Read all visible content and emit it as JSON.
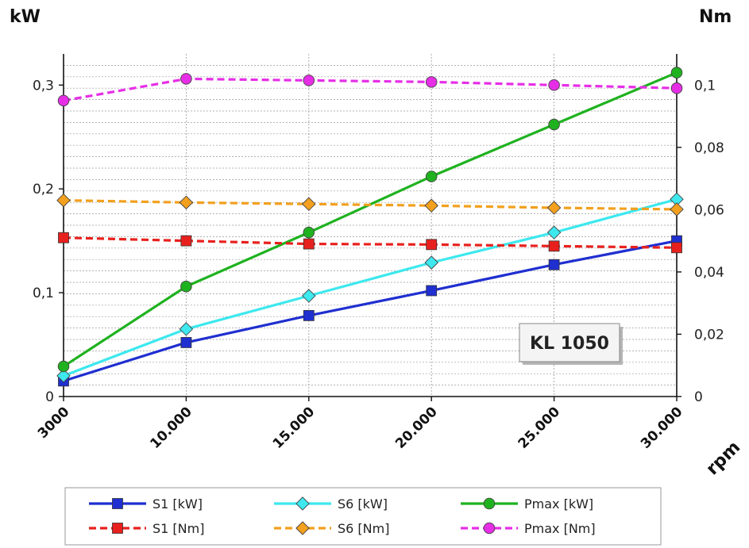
{
  "chart_data": {
    "type": "line",
    "badge": "KL 1050",
    "left_axis": {
      "unit": "kW",
      "ylim": [
        0,
        0.33
      ],
      "ticks": [
        0,
        0.1,
        0.2,
        0.3
      ],
      "tick_labels": [
        "0",
        "0,1",
        "0,2",
        "0,3"
      ]
    },
    "right_axis": {
      "unit": "Nm",
      "ylim": [
        0,
        0.11
      ],
      "ticks": [
        0,
        0.02,
        0.04,
        0.06,
        0.08,
        0.1
      ],
      "tick_labels": [
        "0",
        "0,02",
        "0,04",
        "0,06",
        "0,08",
        "0,1"
      ]
    },
    "x_axis": {
      "unit": "rpm",
      "values": [
        3000,
        10000,
        15000,
        20000,
        25000,
        30000
      ],
      "tick_labels": [
        "3000",
        "10.000",
        "15.000",
        "20.000",
        "25.000",
        "30.000"
      ]
    },
    "grid": true,
    "legend_placement": "bottom",
    "series": [
      {
        "name": "S1 [kW]",
        "axis": "left",
        "color": "#1f2fd0",
        "dash": false,
        "marker": "square",
        "values": [
          0.015,
          0.052,
          0.078,
          0.102,
          0.127,
          0.15
        ]
      },
      {
        "name": "S6 [kW]",
        "axis": "left",
        "color": "#3de8ee",
        "dash": false,
        "marker": "diamond",
        "values": [
          0.02,
          0.065,
          0.097,
          0.129,
          0.158,
          0.19
        ]
      },
      {
        "name": "Pmax [kW]",
        "axis": "left",
        "color": "#1fb21f",
        "dash": false,
        "marker": "circle",
        "values": [
          0.029,
          0.106,
          0.158,
          0.212,
          0.262,
          0.312
        ]
      },
      {
        "name": "S1 [Nm]",
        "axis": "right",
        "color": "#e8201d",
        "dash": true,
        "marker": "square",
        "values": [
          0.051,
          0.05,
          0.049,
          0.0488,
          0.0483,
          0.0478
        ]
      },
      {
        "name": "S6 [Nm]",
        "axis": "right",
        "color": "#f2a01e",
        "dash": true,
        "marker": "diamond",
        "values": [
          0.063,
          0.0623,
          0.0618,
          0.0613,
          0.0606,
          0.0601
        ]
      },
      {
        "name": "Pmax [Nm]",
        "axis": "right",
        "color": "#e62ee6",
        "dash": true,
        "marker": "circle",
        "values": [
          0.095,
          0.102,
          0.1015,
          0.101,
          0.1,
          0.099
        ]
      }
    ]
  }
}
